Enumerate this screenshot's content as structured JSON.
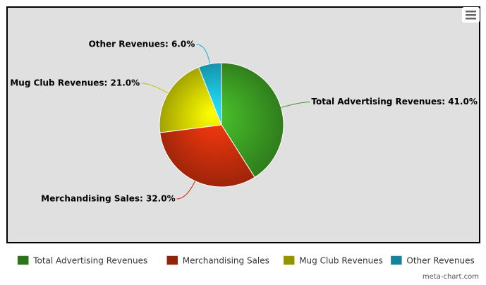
{
  "chart_data": {
    "type": "pie",
    "categories": [
      "Total Advertising Revenues",
      "Merchandising Sales",
      "Mug Club Revenues",
      "Other Revenues"
    ],
    "values": [
      41.0,
      32.0,
      21.0,
      6.0
    ],
    "value_labels": [
      "Total Advertising Revenues: 41.0%",
      "Merchandising Sales: 32.0%",
      "Mug Club Revenues: 21.0%",
      "Other Revenues: 6.0%"
    ],
    "colors": [
      "#3a9a22",
      "#c42d0c",
      "#c4c400",
      "#1ab0d0"
    ],
    "legend": "bottom",
    "credit": "meta-chart.com"
  }
}
